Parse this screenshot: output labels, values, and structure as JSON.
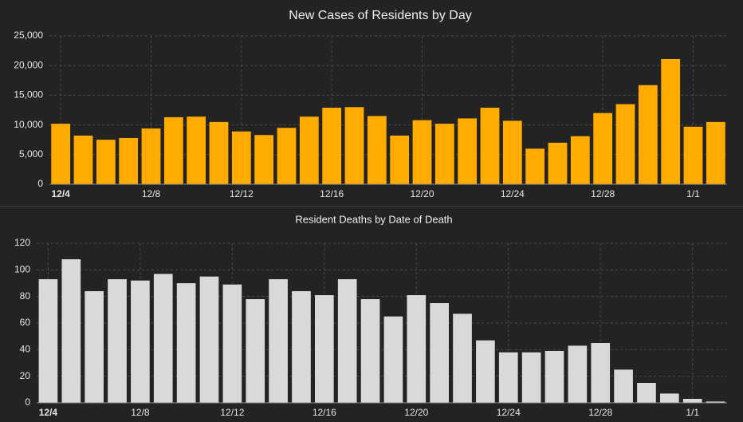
{
  "colors": {
    "background": "#232323",
    "grid": "#4a4a4a",
    "axis_text": "#e6e6e6",
    "title_text": "#f0f0f0",
    "cases_bar": "#ffab00",
    "deaths_bar": "#d9d9d9"
  },
  "chart_data": [
    {
      "type": "bar",
      "title": "New Cases of Residents by Day",
      "xlabel": "",
      "ylabel": "",
      "ylim": [
        0,
        25000
      ],
      "yticks": [
        "0",
        "5,000",
        "10,000",
        "15,000",
        "20,000",
        "25,000"
      ],
      "grid": true,
      "categories": [
        "12/4",
        "12/5",
        "12/6",
        "12/7",
        "12/8",
        "12/9",
        "12/10",
        "12/11",
        "12/12",
        "12/13",
        "12/14",
        "12/15",
        "12/16",
        "12/17",
        "12/18",
        "12/19",
        "12/20",
        "12/21",
        "12/22",
        "12/23",
        "12/24",
        "12/25",
        "12/26",
        "12/27",
        "12/28",
        "12/29",
        "12/30",
        "12/31",
        "1/1",
        "1/2"
      ],
      "xtick_labels": [
        "12/4",
        "12/8",
        "12/12",
        "12/16",
        "12/20",
        "12/24",
        "12/28",
        "1/1"
      ],
      "values": [
        10200,
        8200,
        7500,
        7800,
        9400,
        11300,
        11400,
        10500,
        8900,
        8300,
        9500,
        11400,
        12900,
        13000,
        11500,
        8200,
        10800,
        10200,
        11100,
        12900,
        10700,
        6000,
        7000,
        8100,
        12000,
        13500,
        16700,
        21100,
        9700,
        10500
      ]
    },
    {
      "type": "bar",
      "title": "Resident Deaths by Date of Death",
      "xlabel": "",
      "ylabel": "",
      "ylim": [
        0,
        120
      ],
      "yticks": [
        "0",
        "20",
        "40",
        "60",
        "80",
        "100",
        "120"
      ],
      "grid": true,
      "categories": [
        "12/4",
        "12/5",
        "12/6",
        "12/7",
        "12/8",
        "12/9",
        "12/10",
        "12/11",
        "12/12",
        "12/13",
        "12/14",
        "12/15",
        "12/16",
        "12/17",
        "12/18",
        "12/19",
        "12/20",
        "12/21",
        "12/22",
        "12/23",
        "12/24",
        "12/25",
        "12/26",
        "12/27",
        "12/28",
        "12/29",
        "12/30",
        "12/31",
        "1/1",
        "1/2"
      ],
      "xtick_labels": [
        "12/4",
        "12/8",
        "12/12",
        "12/16",
        "12/20",
        "12/24",
        "12/28",
        "1/1"
      ],
      "values": [
        93,
        108,
        84,
        93,
        92,
        97,
        90,
        95,
        89,
        78,
        93,
        84,
        81,
        93,
        78,
        65,
        81,
        75,
        67,
        47,
        38,
        38,
        39,
        43,
        45,
        25,
        15,
        7,
        3,
        1
      ]
    }
  ]
}
